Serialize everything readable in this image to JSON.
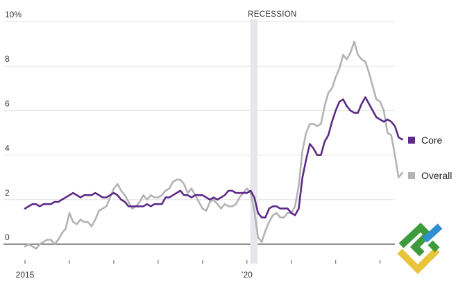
{
  "chart_data": {
    "type": "line",
    "ylim": [
      -0.5,
      10
    ],
    "y_ticks": [
      {
        "value": 10,
        "label": "10%"
      },
      {
        "value": 8,
        "label": "8"
      },
      {
        "value": 6,
        "label": "6"
      },
      {
        "value": 4,
        "label": "4"
      },
      {
        "value": 2,
        "label": "2"
      },
      {
        "value": 0,
        "label": "0"
      }
    ],
    "x_range": [
      "2015-01",
      "2023-05"
    ],
    "x_tick_dates": [
      "2015-01",
      "2016-01",
      "2017-01",
      "2018-01",
      "2019-01",
      "2020-01",
      "2021-01",
      "2022-01",
      "2023-01"
    ],
    "x_tick_labels": [
      {
        "date": "2015-01",
        "label": "2015"
      },
      {
        "date": "2020-01",
        "label": "’20"
      }
    ],
    "recession": {
      "label": "RECESSION",
      "start": "2020-02",
      "end": "2020-04"
    },
    "grid": true,
    "legend_position": "right",
    "colors": {
      "core": "#5b2a86",
      "overall": "#b3b3b3",
      "recession": "#e6e6ec",
      "grid": "#e2e2e2",
      "zero_line": "#555555"
    },
    "series": [
      {
        "name": "Core",
        "start": "2015-01",
        "values": [
          1.6,
          1.7,
          1.8,
          1.8,
          1.7,
          1.8,
          1.8,
          1.8,
          1.9,
          1.9,
          2.0,
          2.1,
          2.2,
          2.3,
          2.2,
          2.1,
          2.2,
          2.2,
          2.2,
          2.3,
          2.2,
          2.1,
          2.1,
          2.2,
          2.3,
          2.2,
          2.0,
          1.9,
          1.7,
          1.7,
          1.7,
          1.7,
          1.7,
          1.8,
          1.7,
          1.8,
          1.8,
          1.8,
          2.1,
          2.1,
          2.2,
          2.3,
          2.4,
          2.2,
          2.2,
          2.1,
          2.2,
          2.2,
          2.2,
          2.1,
          2.0,
          2.1,
          2.0,
          2.1,
          2.2,
          2.4,
          2.4,
          2.3,
          2.3,
          2.3,
          2.3,
          2.4,
          2.1,
          1.4,
          1.2,
          1.2,
          1.6,
          1.7,
          1.7,
          1.6,
          1.6,
          1.6,
          1.4,
          1.3,
          1.6,
          3.0,
          3.8,
          4.5,
          4.3,
          4.0,
          4.0,
          4.6,
          4.9,
          5.5,
          6.0,
          6.4,
          6.5,
          6.2,
          6.0,
          5.9,
          5.9,
          6.3,
          6.6,
          6.3,
          6.0,
          5.7,
          5.6,
          5.5,
          5.6,
          5.5,
          5.3,
          4.8,
          4.7
        ]
      },
      {
        "name": "Overall",
        "start": "2015-01",
        "values": [
          -0.1,
          0.0,
          -0.1,
          -0.2,
          0.0,
          0.1,
          0.2,
          0.2,
          0.0,
          0.2,
          0.5,
          0.7,
          1.4,
          1.0,
          0.9,
          1.1,
          1.0,
          1.0,
          0.8,
          1.1,
          1.5,
          1.6,
          1.7,
          2.1,
          2.5,
          2.7,
          2.4,
          2.2,
          1.9,
          1.6,
          1.7,
          1.9,
          2.2,
          2.0,
          2.2,
          2.1,
          2.1,
          2.2,
          2.4,
          2.5,
          2.8,
          2.9,
          2.9,
          2.7,
          2.3,
          2.5,
          2.2,
          1.9,
          1.6,
          1.5,
          1.9,
          2.0,
          1.8,
          1.6,
          1.8,
          1.7,
          1.7,
          1.8,
          2.1,
          2.3,
          2.5,
          2.3,
          1.5,
          0.3,
          0.1,
          0.6,
          1.0,
          1.3,
          1.4,
          1.2,
          1.2,
          1.4,
          1.4,
          1.7,
          2.6,
          4.2,
          5.0,
          5.4,
          5.4,
          5.3,
          5.4,
          6.2,
          6.8,
          7.0,
          7.5,
          7.9,
          8.5,
          8.3,
          8.6,
          9.1,
          8.5,
          8.3,
          8.2,
          7.7,
          7.1,
          6.5,
          6.4,
          6.0,
          5.0,
          4.9,
          4.0,
          3.0,
          3.2
        ]
      }
    ]
  }
}
